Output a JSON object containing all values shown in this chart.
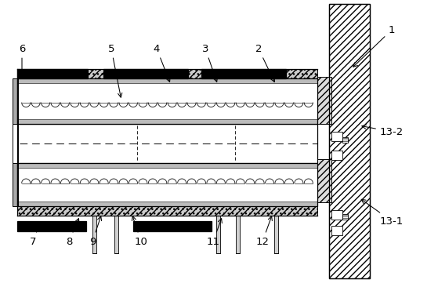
{
  "bg_color": "#ffffff",
  "line_color": "#000000",
  "figsize": [
    5.59,
    3.66
  ],
  "dpi": 100,
  "labels_data": [
    [
      "1",
      500,
      38,
      448,
      88
    ],
    [
      "2",
      330,
      62,
      352,
      108
    ],
    [
      "3",
      262,
      62,
      278,
      108
    ],
    [
      "4",
      200,
      62,
      218,
      108
    ],
    [
      "5",
      142,
      62,
      155,
      128
    ],
    [
      "6",
      28,
      62,
      28,
      98
    ],
    [
      "7",
      42,
      308,
      52,
      282
    ],
    [
      "8",
      88,
      308,
      102,
      275
    ],
    [
      "9",
      118,
      308,
      130,
      272
    ],
    [
      "10",
      180,
      308,
      168,
      272
    ],
    [
      "11",
      272,
      308,
      284,
      275
    ],
    [
      "12",
      335,
      308,
      348,
      272
    ],
    [
      "13-1",
      500,
      282,
      458,
      252
    ],
    [
      "13-2",
      500,
      168,
      458,
      160
    ]
  ]
}
